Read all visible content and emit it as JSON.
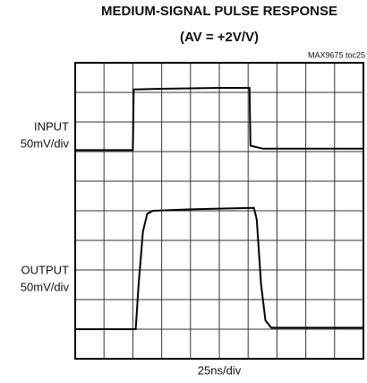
{
  "chart_data": {
    "type": "line",
    "title": "MEDIUM-SIGNAL PULSE RESPONSE",
    "subtitle": "(AV = +2V/V)",
    "annotation": "MAX9675 toc25",
    "xlabel": "25ns/div",
    "channel_labels": [
      [
        "INPUT",
        "50mV/div"
      ],
      [
        "OUTPUT",
        "50mV/div"
      ]
    ],
    "xlim": [
      0,
      10
    ],
    "ylim": [
      0,
      10
    ],
    "xticks": [
      0,
      1,
      2,
      3,
      4,
      5,
      6,
      7,
      8,
      9,
      10
    ],
    "yticks": [
      0,
      1,
      2,
      3,
      4,
      5,
      6,
      7,
      8,
      9,
      10
    ],
    "grid": true,
    "series": [
      {
        "name": "INPUT",
        "color": "#000000",
        "x": [
          0,
          2.0,
          2.03,
          3,
          5,
          6.05,
          6.08,
          6.5,
          10
        ],
        "values": [
          7.05,
          7.05,
          9.1,
          9.12,
          9.15,
          9.15,
          7.2,
          7.1,
          7.1
        ]
      },
      {
        "name": "OUTPUT",
        "color": "#000000",
        "x": [
          0,
          2.1,
          2.2,
          2.35,
          2.5,
          2.7,
          4,
          6.2,
          6.3,
          6.45,
          6.6,
          6.8,
          10
        ],
        "values": [
          1,
          1,
          2.5,
          4.3,
          4.9,
          5.0,
          5.05,
          5.1,
          4.7,
          2.5,
          1.3,
          1.05,
          1.05
        ]
      }
    ]
  }
}
